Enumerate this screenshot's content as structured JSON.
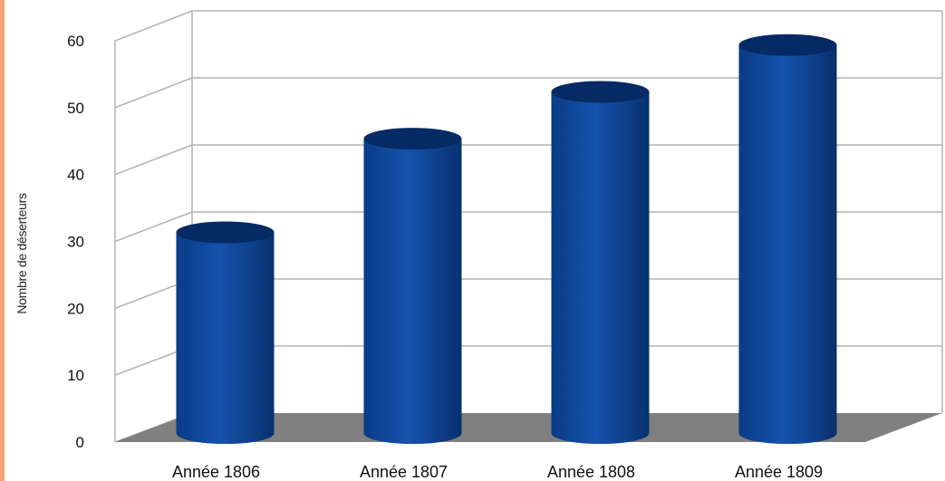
{
  "colors": {
    "accent_strip": "#f3a177",
    "bar": "#0f4596",
    "bar_dark": "#062a63",
    "floor": "#808080",
    "grid": "#b3b3b3",
    "text": "#111111"
  },
  "chart_data": {
    "type": "bar",
    "three_d": true,
    "categories": [
      "Année 1806",
      "Année 1807",
      "Année 1808",
      "Année 1809"
    ],
    "values": [
      30,
      44,
      51,
      58
    ],
    "xlabel": "",
    "ylabel": "Nombre de déserteurs",
    "ylim": [
      0,
      60
    ],
    "yticks": [
      "0",
      "10",
      "20",
      "30",
      "40",
      "50",
      "60"
    ],
    "grid": true,
    "legend": "none"
  }
}
